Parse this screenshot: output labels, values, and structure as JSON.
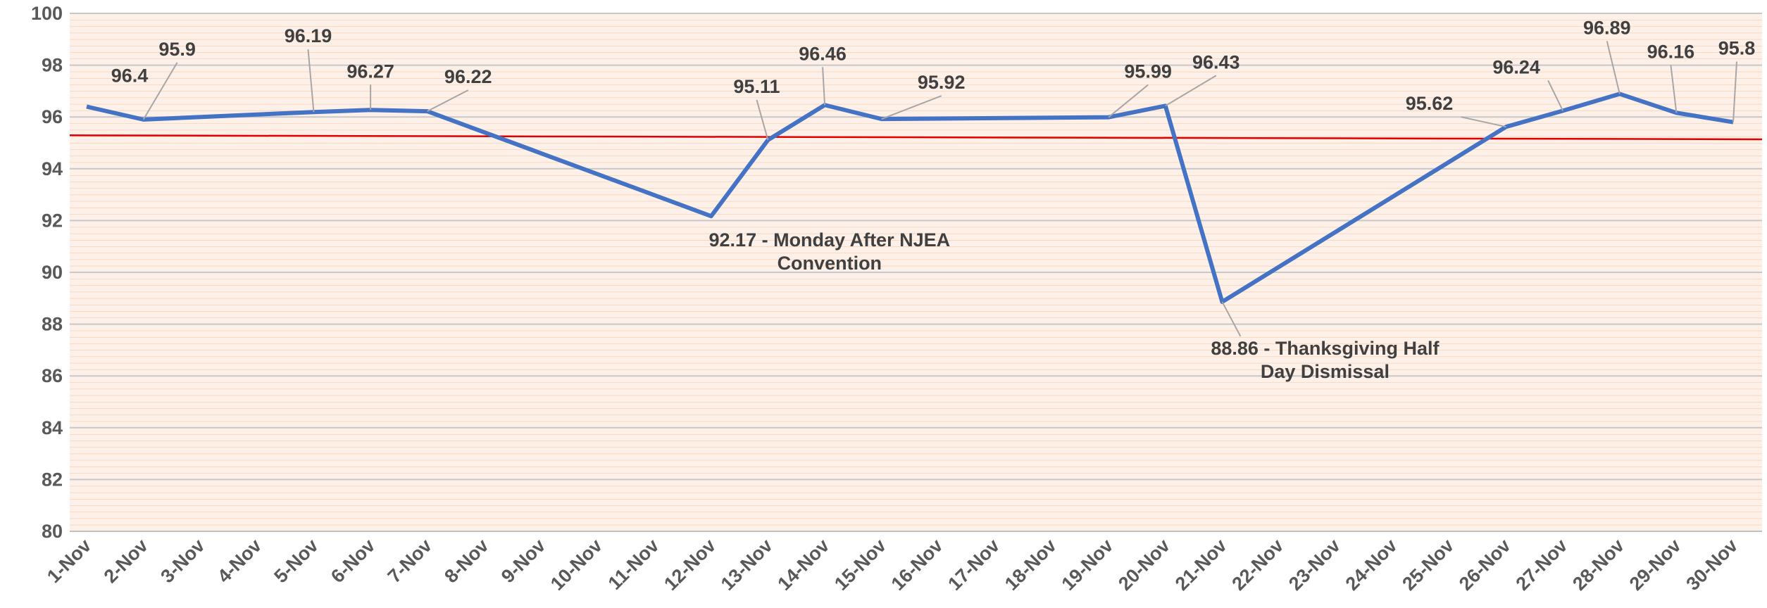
{
  "chart_data": {
    "type": "line",
    "categories": [
      "1-Nov",
      "2-Nov",
      "3-Nov",
      "4-Nov",
      "5-Nov",
      "6-Nov",
      "7-Nov",
      "8-Nov",
      "9-Nov",
      "10-Nov",
      "11-Nov",
      "12-Nov",
      "13-Nov",
      "14-Nov",
      "15-Nov",
      "16-Nov",
      "17-Nov",
      "18-Nov",
      "19-Nov",
      "20-Nov",
      "21-Nov",
      "22-Nov",
      "23-Nov",
      "24-Nov",
      "25-Nov",
      "26-Nov",
      "27-Nov",
      "28-Nov",
      "29-Nov",
      "30-Nov"
    ],
    "values": [
      96.4,
      95.9,
      null,
      null,
      96.19,
      96.27,
      96.22,
      null,
      null,
      null,
      null,
      92.17,
      95.11,
      96.46,
      95.92,
      null,
      null,
      null,
      95.99,
      96.43,
      88.86,
      null,
      null,
      null,
      null,
      95.62,
      96.24,
      96.89,
      96.16,
      95.8
    ],
    "value_labels": [
      null,
      null,
      null,
      null,
      null,
      null,
      null,
      null,
      null,
      null,
      null,
      "92.17 - Monday After NJEA Convention",
      null,
      null,
      null,
      null,
      null,
      null,
      null,
      null,
      "88.86 - Thanksgiving Half Day Dismissal",
      null,
      null,
      null,
      null,
      null,
      null,
      null,
      null,
      null
    ],
    "color": "#4472c4",
    "connect_gaps": true,
    "trendline": {
      "color": "#e00000",
      "values": [
        95.29,
        95.14
      ]
    },
    "ylim": [
      80,
      100
    ],
    "yticks": [
      80,
      82,
      84,
      86,
      88,
      90,
      92,
      94,
      96,
      98,
      100
    ],
    "grid": true
  }
}
